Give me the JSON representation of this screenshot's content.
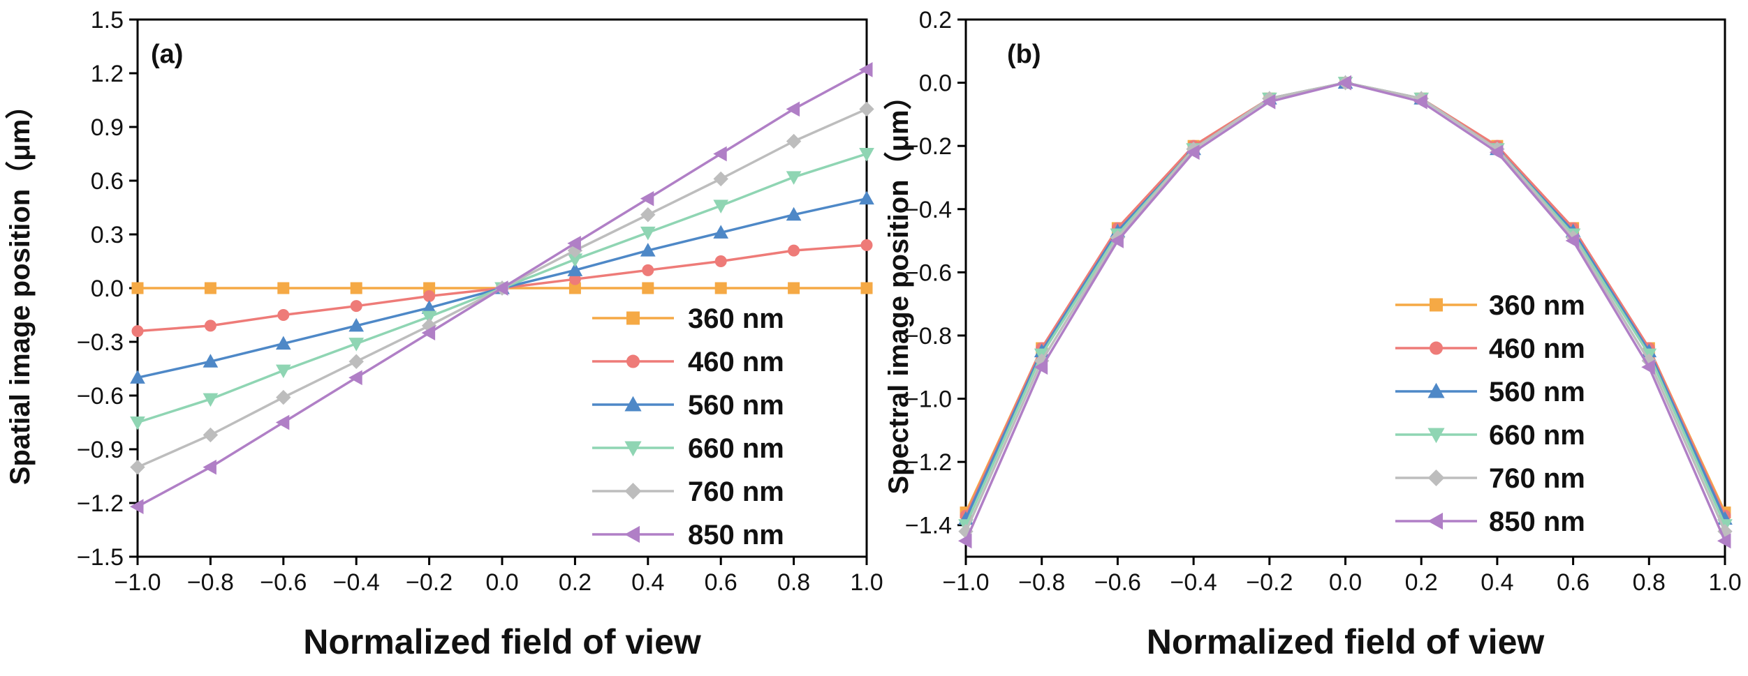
{
  "chart_data": [
    {
      "type": "line",
      "panel_label": "(a)",
      "xlabel": "Normalized field of view",
      "ylabel": "Spatial image position（μm）",
      "xlim": [
        -1.0,
        1.0
      ],
      "ylim": [
        -1.5,
        1.5
      ],
      "xticks": [
        -1.0,
        -0.8,
        -0.6,
        -0.4,
        -0.2,
        0.0,
        0.2,
        0.4,
        0.6,
        0.8,
        1.0
      ],
      "yticks": [
        -1.5,
        -1.2,
        -0.9,
        -0.6,
        -0.3,
        0.0,
        0.3,
        0.6,
        0.9,
        1.2,
        1.5
      ],
      "xtick_labels": [
        "−1.0",
        "−0.8",
        "−0.6",
        "−0.4",
        "−0.2",
        "0.0",
        "0.2",
        "0.4",
        "0.6",
        "0.8",
        "1.0"
      ],
      "ytick_labels": [
        "−1.5",
        "−1.2",
        "−0.9",
        "−0.6",
        "−0.3",
        "0.0",
        "0.3",
        "0.6",
        "0.9",
        "1.2",
        "1.5"
      ],
      "grid": false,
      "legend_position": "bottom-right",
      "x": [
        -1.0,
        -0.8,
        -0.6,
        -0.4,
        -0.2,
        0.0,
        0.2,
        0.4,
        0.6,
        0.8,
        1.0
      ],
      "series": [
        {
          "name": "360 nm",
          "color": "#F5A945",
          "marker": "square",
          "values": [
            0,
            0,
            0,
            0,
            0,
            0,
            0,
            0,
            0,
            0,
            0
          ]
        },
        {
          "name": "460 nm",
          "color": "#EE7B78",
          "marker": "circle",
          "values": [
            -0.24,
            -0.21,
            -0.15,
            -0.1,
            -0.045,
            0,
            0.05,
            0.1,
            0.15,
            0.21,
            0.24
          ]
        },
        {
          "name": "560 nm",
          "color": "#4E88C7",
          "marker": "triangle-up",
          "values": [
            -0.5,
            -0.41,
            -0.31,
            -0.21,
            -0.11,
            0,
            0.1,
            0.21,
            0.31,
            0.41,
            0.5
          ]
        },
        {
          "name": "660 nm",
          "color": "#8FD5B3",
          "marker": "triangle-down",
          "values": [
            -0.75,
            -0.62,
            -0.46,
            -0.31,
            -0.16,
            0,
            0.16,
            0.31,
            0.46,
            0.62,
            0.75
          ]
        },
        {
          "name": "760 nm",
          "color": "#BDBDBD",
          "marker": "diamond",
          "values": [
            -1.0,
            -0.82,
            -0.61,
            -0.41,
            -0.21,
            0,
            0.21,
            0.41,
            0.61,
            0.82,
            1.0
          ]
        },
        {
          "name": "850 nm",
          "color": "#B07FC6",
          "marker": "triangle-left",
          "values": [
            -1.22,
            -1.0,
            -0.75,
            -0.5,
            -0.25,
            0,
            0.25,
            0.5,
            0.75,
            1.0,
            1.22
          ]
        }
      ]
    },
    {
      "type": "line",
      "panel_label": "(b)",
      "xlabel": "Normalized field of view",
      "ylabel": "Spectral image position（μm）",
      "xlim": [
        -1.0,
        1.0
      ],
      "ylim": [
        -1.5,
        0.2
      ],
      "xticks": [
        -1.0,
        -0.8,
        -0.6,
        -0.4,
        -0.2,
        0.0,
        0.2,
        0.4,
        0.6,
        0.8,
        1.0
      ],
      "yticks": [
        -1.4,
        -1.2,
        -1.0,
        -0.8,
        -0.6,
        -0.4,
        -0.2,
        0.0,
        0.2
      ],
      "xtick_labels": [
        "−1.0",
        "−0.8",
        "−0.6",
        "−0.4",
        "−0.2",
        "0.0",
        "0.2",
        "0.4",
        "0.6",
        "0.8",
        "1.0"
      ],
      "ytick_labels": [
        "−1.4",
        "−1.2",
        "−1.0",
        "−0.8",
        "−0.6",
        "−0.4",
        "−0.2",
        "0.0",
        "0.2"
      ],
      "grid": false,
      "legend_position": "bottom-right",
      "x": [
        -1.0,
        -0.8,
        -0.6,
        -0.4,
        -0.2,
        0.0,
        0.2,
        0.4,
        0.6,
        0.8,
        1.0
      ],
      "series": [
        {
          "name": "360 nm",
          "color": "#F5A945",
          "marker": "square",
          "values": [
            -1.36,
            -0.84,
            -0.46,
            -0.2,
            -0.05,
            0,
            -0.05,
            -0.2,
            -0.46,
            -0.84,
            -1.36
          ]
        },
        {
          "name": "460 nm",
          "color": "#EE7B78",
          "marker": "circle",
          "values": [
            -1.37,
            -0.84,
            -0.46,
            -0.2,
            -0.05,
            0,
            -0.05,
            -0.2,
            -0.46,
            -0.84,
            -1.37
          ]
        },
        {
          "name": "560 nm",
          "color": "#4E88C7",
          "marker": "triangle-up",
          "values": [
            -1.38,
            -0.85,
            -0.47,
            -0.21,
            -0.05,
            0,
            -0.05,
            -0.21,
            -0.47,
            -0.85,
            -1.38
          ]
        },
        {
          "name": "660 nm",
          "color": "#8FD5B3",
          "marker": "triangle-down",
          "values": [
            -1.4,
            -0.86,
            -0.48,
            -0.21,
            -0.05,
            0,
            -0.05,
            -0.21,
            -0.48,
            -0.86,
            -1.4
          ]
        },
        {
          "name": "760 nm",
          "color": "#BDBDBD",
          "marker": "diamond",
          "values": [
            -1.42,
            -0.88,
            -0.49,
            -0.21,
            -0.05,
            0,
            -0.05,
            -0.21,
            -0.49,
            -0.88,
            -1.42
          ]
        },
        {
          "name": "850 nm",
          "color": "#B07FC6",
          "marker": "triangle-left",
          "values": [
            -1.45,
            -0.9,
            -0.5,
            -0.22,
            -0.06,
            0,
            -0.06,
            -0.22,
            -0.5,
            -0.9,
            -1.45
          ]
        }
      ]
    }
  ]
}
